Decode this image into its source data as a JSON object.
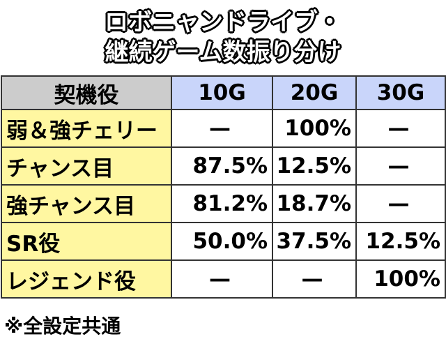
{
  "header": {
    "title_lines": [
      "ロボニャンドライブ・",
      "継続ゲーム数振り分け"
    ]
  },
  "table": {
    "columns": [
      "契機役",
      "10G",
      "20G",
      "30G"
    ],
    "rows": [
      [
        "弱＆強チェリー",
        "—",
        "100%",
        "—"
      ],
      [
        "チャンス目",
        "87.5%",
        "12.5%",
        "—"
      ],
      [
        "強チャンス目",
        "81.2%",
        "18.7%",
        "—"
      ],
      [
        "SR役",
        "50.0%",
        "37.5%",
        "12.5%"
      ],
      [
        "レジェンド役",
        "—",
        "—",
        "100%"
      ]
    ]
  },
  "footer": {
    "note": "※全設定共通"
  }
}
